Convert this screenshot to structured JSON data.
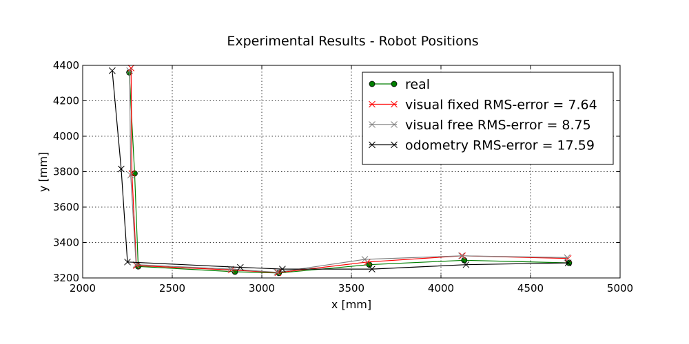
{
  "chart_data": {
    "type": "line",
    "title": "Experimental Results - Robot Positions",
    "xlabel": "x [mm]",
    "ylabel": "y [mm]",
    "xlim": [
      2000,
      5000
    ],
    "ylim": [
      3200,
      4400
    ],
    "xticks": [
      "2000",
      "2500",
      "3000",
      "3500",
      "4000",
      "4500",
      "5000"
    ],
    "yticks": [
      "3200",
      "3400",
      "3600",
      "3800",
      "4000",
      "4200",
      "4400"
    ],
    "grid": true,
    "legend_position": "top-right",
    "series": [
      {
        "name": "real",
        "color": "#007f00",
        "marker": "circle",
        "x": [
          2260,
          2290,
          2310,
          2850,
          3095,
          3600,
          4130,
          4715
        ],
        "y": [
          4360,
          3790,
          3265,
          3235,
          3228,
          3275,
          3300,
          3285
        ]
      },
      {
        "name": "visual fixed RMS-error = 7.64",
        "color": "#ff0000",
        "marker": "x",
        "x": [
          2270,
          2275,
          2300,
          2830,
          3090,
          3590,
          4120,
          4710
        ],
        "y": [
          4385,
          3790,
          3270,
          3245,
          3230,
          3290,
          3325,
          3310
        ]
      },
      {
        "name": "visual free RMS-error = 8.75",
        "color": "#808080",
        "marker": "x",
        "x": [
          2262,
          2268,
          2298,
          2825,
          3085,
          3575,
          4115,
          4705
        ],
        "y": [
          4370,
          3780,
          3275,
          3250,
          3232,
          3305,
          3325,
          3315
        ]
      },
      {
        "name": "odometry RMS-error = 17.59",
        "color": "#000000",
        "marker": "x",
        "x": [
          2165,
          2215,
          2250,
          2880,
          3115,
          3615,
          4140,
          4710
        ],
        "y": [
          4370,
          3815,
          3290,
          3260,
          3250,
          3250,
          3275,
          3285
        ]
      }
    ]
  }
}
